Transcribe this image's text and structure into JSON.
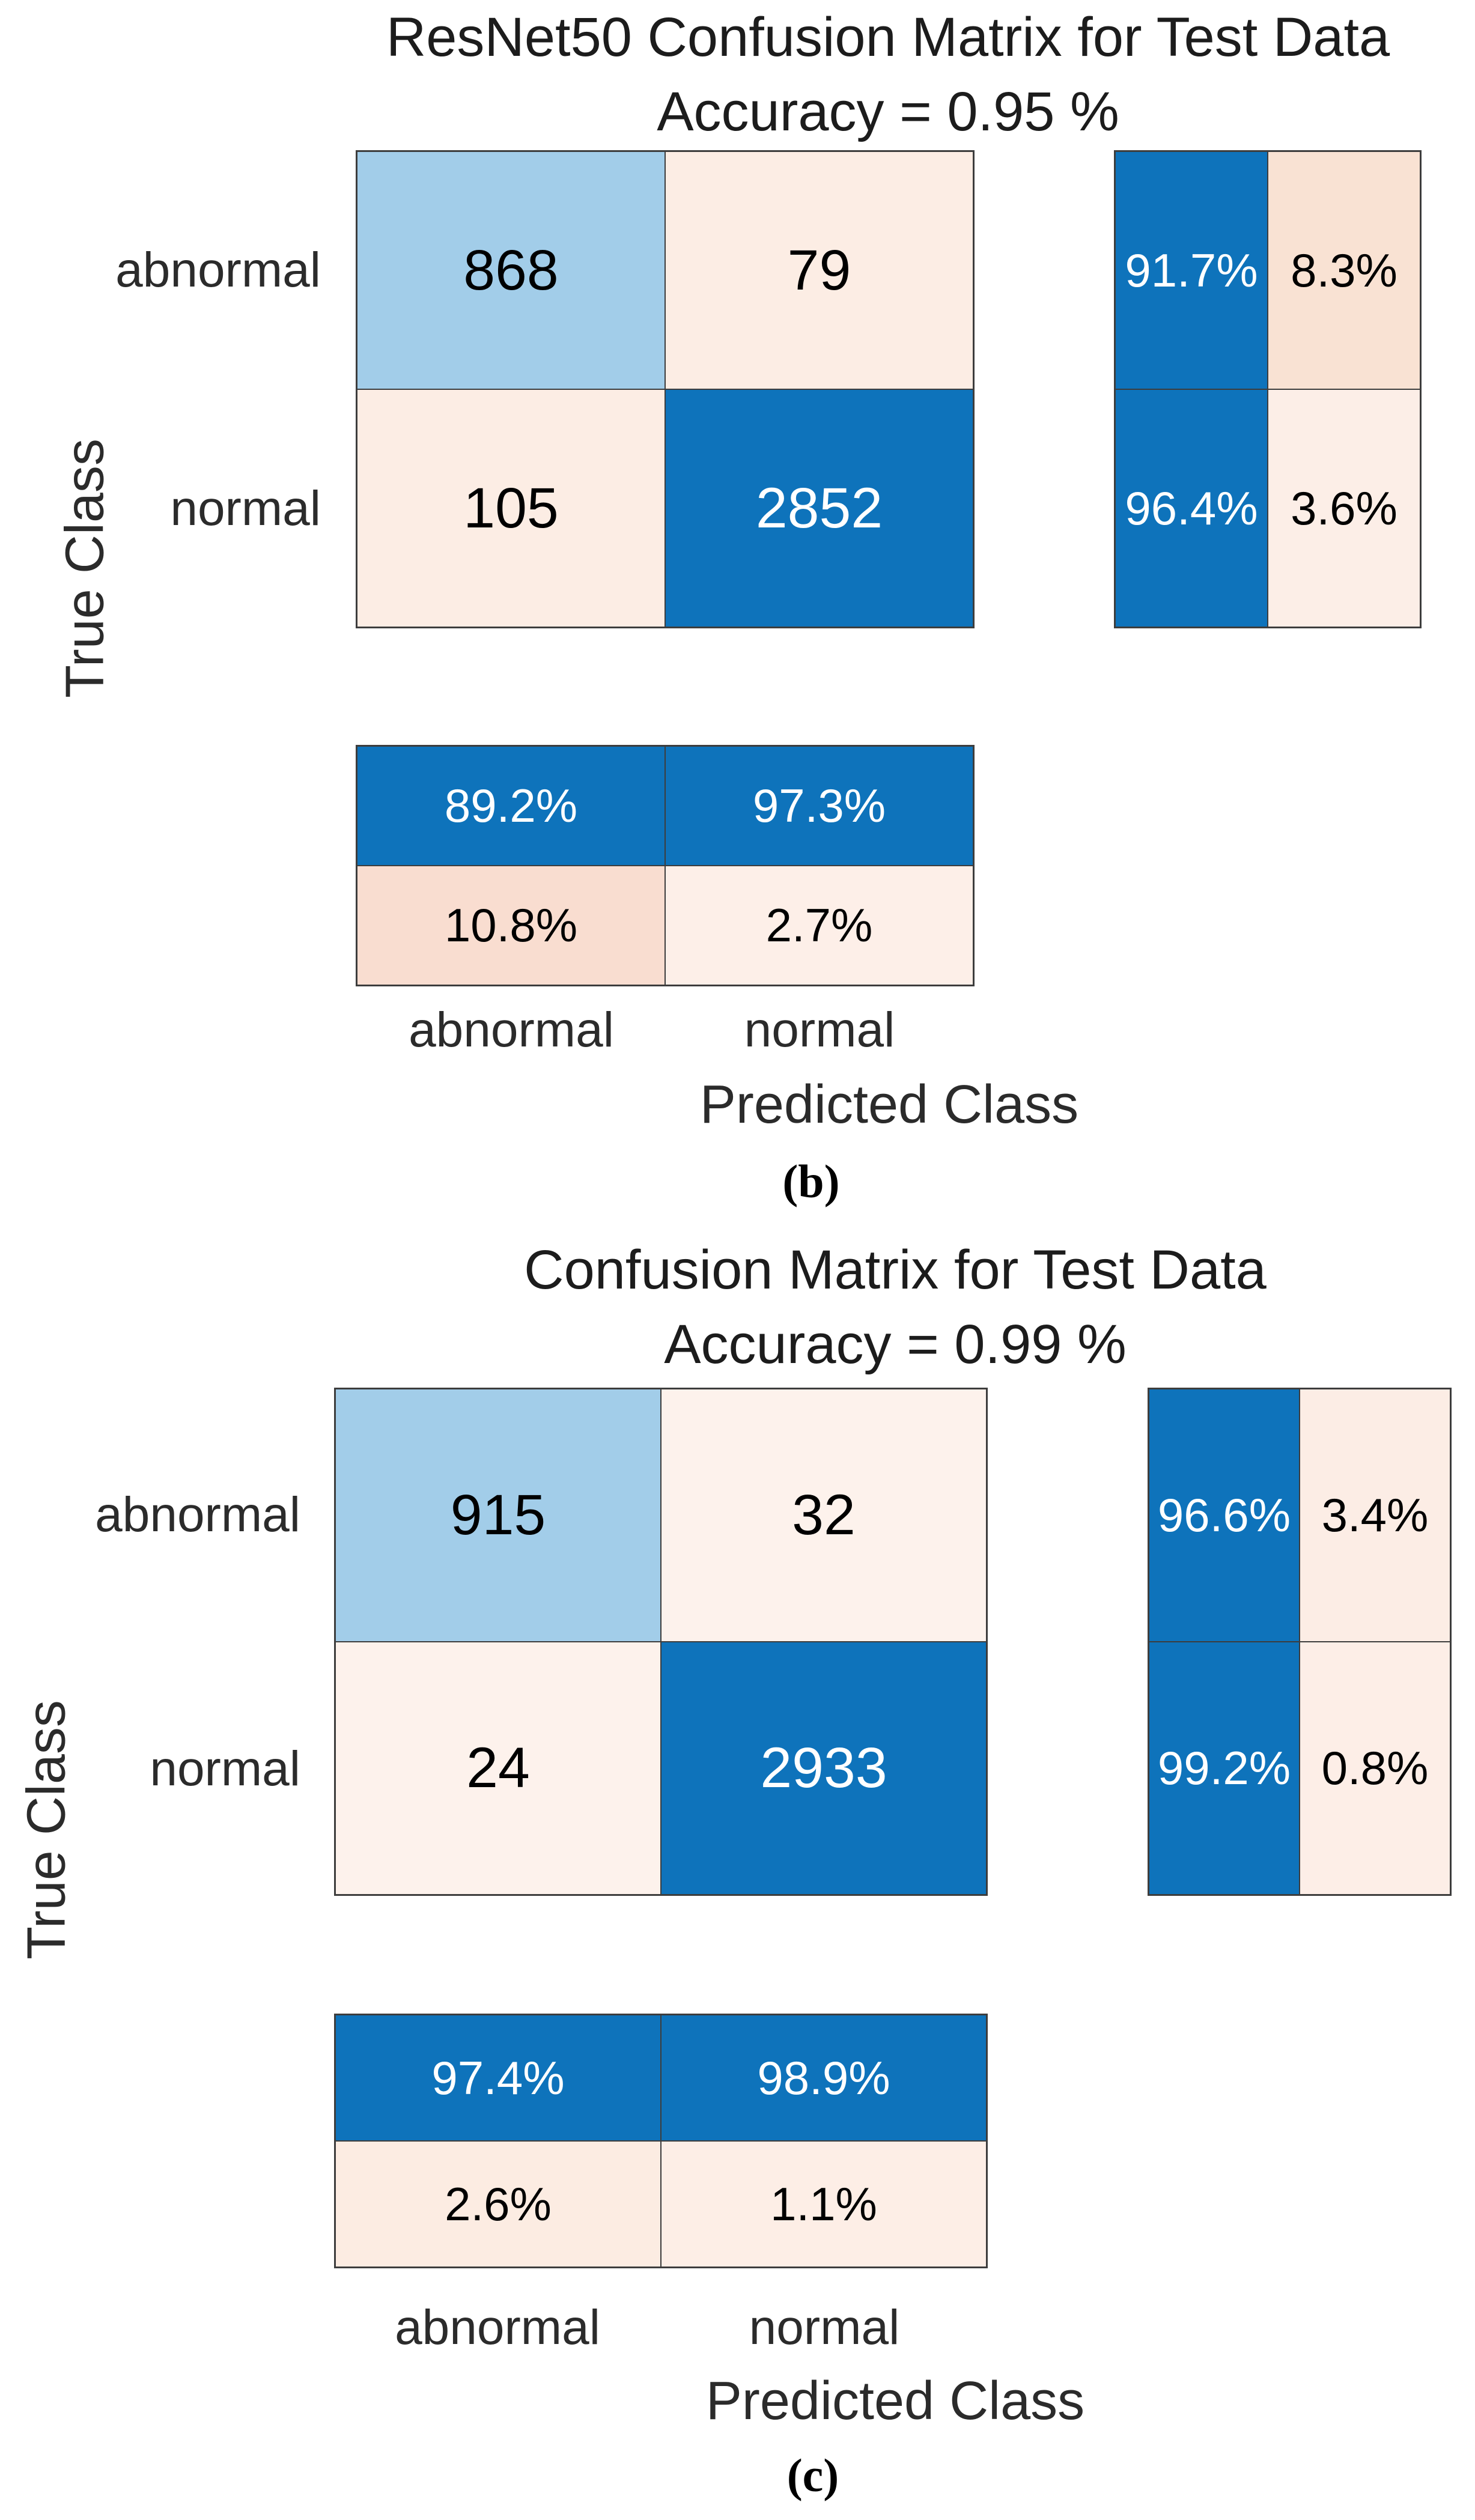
{
  "colors": {
    "diagonal_blue": "#0e73bb",
    "diagonal_light_blue": "#a2cde9",
    "off_diagonal_peach_strong": "#f9ddd0",
    "off_diagonal_peach_medium": "#f9e2d3",
    "off_diagonal_peach_light": "#fcede4",
    "grid_line": "#3d3d3d",
    "axis_text": "#2b2b2b"
  },
  "panels": [
    {
      "title": "ResNet50 Confusion Matrix for Test Data",
      "subtitle": "Accuracy = 0.95 %",
      "caption": "(b)",
      "x_axis_label": "Predicted Class",
      "y_axis_label": "True Class",
      "row_ticks": [
        "abnormal",
        "normal"
      ],
      "col_ticks": [
        "abnormal",
        "normal"
      ],
      "matrix_cells": [
        {
          "label": "868",
          "bg": "#a2cde9",
          "fg": "#000000"
        },
        {
          "label": "79",
          "bg": "#fcede4",
          "fg": "#000000"
        },
        {
          "label": "105",
          "bg": "#fcede4",
          "fg": "#000000"
        },
        {
          "label": "2852",
          "bg": "#0e73bb",
          "fg": "#ffffff"
        }
      ],
      "row_summary_cells": [
        {
          "label": "91.7%",
          "bg": "#0e73bb",
          "fg": "#ffffff"
        },
        {
          "label": "8.3%",
          "bg": "#f9e2d3",
          "fg": "#000000"
        },
        {
          "label": "96.4%",
          "bg": "#0e73bb",
          "fg": "#ffffff"
        },
        {
          "label": "3.6%",
          "bg": "#fceee7",
          "fg": "#000000"
        }
      ],
      "col_summary_cells": [
        {
          "label": "89.2%",
          "bg": "#0e73bb",
          "fg": "#ffffff"
        },
        {
          "label": "97.3%",
          "bg": "#0e73bb",
          "fg": "#ffffff"
        },
        {
          "label": "10.8%",
          "bg": "#f9ddd0",
          "fg": "#000000"
        },
        {
          "label": "2.7%",
          "bg": "#fdefe8",
          "fg": "#000000"
        }
      ]
    },
    {
      "title": "Confusion Matrix for Test Data",
      "subtitle": "Accuracy = 0.99 %",
      "caption": "(c)",
      "x_axis_label": "Predicted Class",
      "y_axis_label": "True Class",
      "row_ticks": [
        "abnormal",
        "normal"
      ],
      "col_ticks": [
        "abnormal",
        "normal"
      ],
      "matrix_cells": [
        {
          "label": "915",
          "bg": "#a2cde9",
          "fg": "#000000"
        },
        {
          "label": "32",
          "bg": "#fdf2ec",
          "fg": "#000000"
        },
        {
          "label": "24",
          "bg": "#fdf2ec",
          "fg": "#000000"
        },
        {
          "label": "2933",
          "bg": "#0e73bb",
          "fg": "#ffffff"
        }
      ],
      "row_summary_cells": [
        {
          "label": "96.6%",
          "bg": "#0e73bb",
          "fg": "#ffffff"
        },
        {
          "label": "3.4%",
          "bg": "#fcede5",
          "fg": "#000000"
        },
        {
          "label": "99.2%",
          "bg": "#0e73bb",
          "fg": "#ffffff"
        },
        {
          "label": "0.8%",
          "bg": "#fdeee7",
          "fg": "#000000"
        }
      ],
      "col_summary_cells": [
        {
          "label": "97.4%",
          "bg": "#0e73bb",
          "fg": "#ffffff"
        },
        {
          "label": "98.9%",
          "bg": "#0e73bb",
          "fg": "#ffffff"
        },
        {
          "label": "2.6%",
          "bg": "#fcece2",
          "fg": "#000000"
        },
        {
          "label": "1.1%",
          "bg": "#fdeee6",
          "fg": "#000000"
        }
      ]
    }
  ],
  "chart_data": [
    {
      "type": "heatmap",
      "subtype": "confusion-matrix",
      "title": "ResNet50 Confusion Matrix for Test Data",
      "subtitle": "Accuracy = 0.95 %",
      "caption": "(b)",
      "xlabel": "Predicted Class",
      "ylabel": "True Class",
      "classes": [
        "abnormal",
        "normal"
      ],
      "matrix_rows_true_by_predicted": [
        [
          868,
          79
        ],
        [
          105,
          2852
        ]
      ],
      "row_normalized_pct": [
        [
          91.7,
          8.3
        ],
        [
          96.4,
          3.6
        ]
      ],
      "col_normalized_pct": [
        [
          89.2,
          97.3
        ],
        [
          10.8,
          2.7
        ]
      ],
      "legend_position": "none",
      "grid": "cell-borders"
    },
    {
      "type": "heatmap",
      "subtype": "confusion-matrix",
      "title": "Confusion Matrix for Test Data",
      "subtitle": "Accuracy = 0.99 %",
      "caption": "(c)",
      "xlabel": "Predicted Class",
      "ylabel": "True Class",
      "classes": [
        "abnormal",
        "normal"
      ],
      "matrix_rows_true_by_predicted": [
        [
          915,
          32
        ],
        [
          24,
          2933
        ]
      ],
      "row_normalized_pct": [
        [
          96.6,
          3.4
        ],
        [
          99.2,
          0.8
        ]
      ],
      "col_normalized_pct": [
        [
          97.4,
          98.9
        ],
        [
          2.6,
          1.1
        ]
      ],
      "legend_position": "none",
      "grid": "cell-borders"
    }
  ]
}
